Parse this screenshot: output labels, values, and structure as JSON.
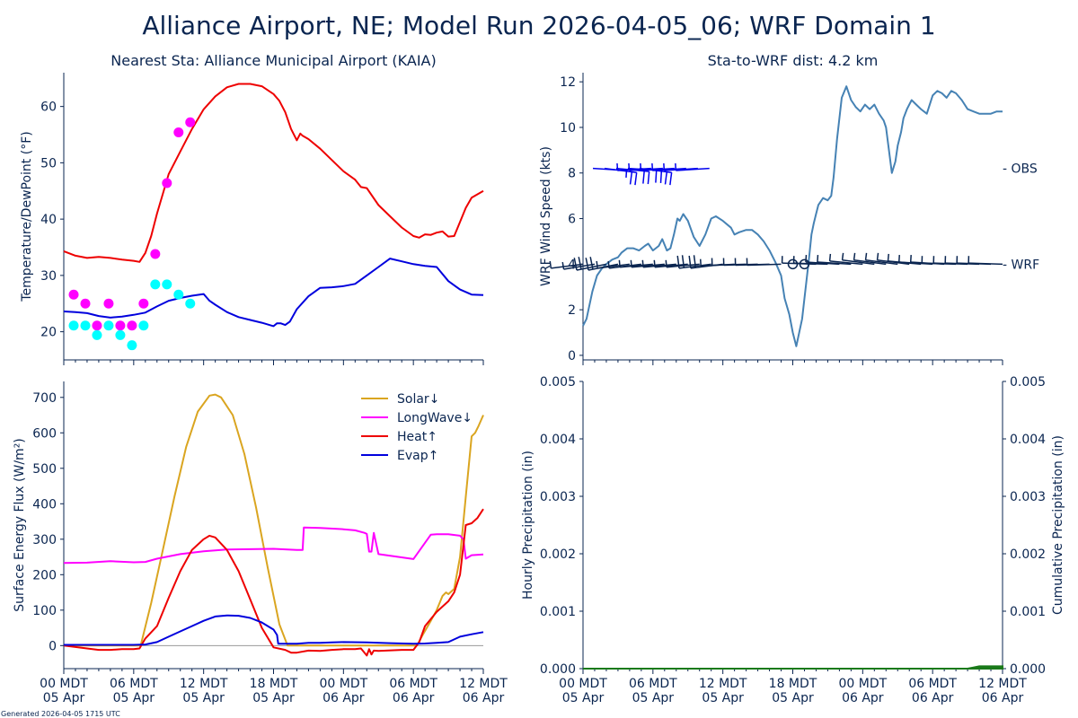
{
  "figure": {
    "title": "Alliance Airport, NE; Model Run 2026-04-05_06; WRF Domain 1",
    "footnote": "Generated 2026-04-05 1715 UTC"
  },
  "colors": {
    "axis": "#0a2550",
    "temp": "#ee0000",
    "dewpoint": "#0000dd",
    "obs_temp": "#ff00ff",
    "obs_dew": "#00ffff",
    "wind_speed": "#4682b4",
    "obs_barb": "#0000ee",
    "wrf_barb": "#0a2550",
    "solar": "#daa520",
    "longwave": "#ff00ff",
    "heat": "#ee0000",
    "evap": "#0000dd",
    "precip": "#1a7a1a",
    "zero_line": "#999999"
  },
  "x_axis": {
    "unit": "hours since 00 MDT 05 Apr",
    "range": [
      0,
      36
    ],
    "ticks": [
      {
        "hour": 0,
        "line1": "00 MDT",
        "line2": "05 Apr"
      },
      {
        "hour": 6,
        "line1": "06 MDT",
        "line2": "05 Apr"
      },
      {
        "hour": 12,
        "line1": "12 MDT",
        "line2": "05 Apr"
      },
      {
        "hour": 18,
        "line1": "18 MDT",
        "line2": "05 Apr"
      },
      {
        "hour": 24,
        "line1": "00 MDT",
        "line2": "06 Apr"
      },
      {
        "hour": 30,
        "line1": "06 MDT",
        "line2": "06 Apr"
      },
      {
        "hour": 36,
        "line1": "12 MDT",
        "line2": "06 Apr"
      }
    ]
  },
  "chart_data": [
    {
      "id": "temp",
      "type": "line",
      "title": "Nearest Sta: Alliance Municipal Airport (KAIA)",
      "xlabel": "",
      "ylabel": "Temperature/DewPoint (°F)",
      "ylim": [
        15,
        66
      ],
      "yticks": [
        20,
        30,
        40,
        50,
        60
      ],
      "series": [
        {
          "name": "WRF Temperature",
          "color_key": "temp",
          "x": [
            0,
            1,
            2,
            3,
            4,
            5,
            6,
            6.5,
            7,
            7.5,
            8,
            8.5,
            9,
            10,
            11,
            12,
            13,
            14,
            15,
            16,
            17,
            18,
            18.5,
            19,
            19.5,
            20,
            20.3,
            20.5,
            21,
            22,
            23,
            24,
            25,
            25.5,
            26,
            27,
            28,
            29,
            30,
            30.5,
            31,
            31.5,
            32,
            32.5,
            33,
            33.5,
            34,
            34.5,
            35,
            36
          ],
          "y": [
            34.3,
            33.5,
            33.1,
            33.3,
            33.1,
            32.8,
            32.6,
            32.4,
            34,
            37,
            41,
            44.5,
            48,
            52,
            56,
            59.5,
            61.8,
            63.4,
            64,
            64,
            63.6,
            62.2,
            61,
            59,
            56,
            54,
            55.2,
            54.8,
            54.2,
            52.5,
            50.5,
            48.5,
            47,
            45.7,
            45.5,
            42.5,
            40.5,
            38.5,
            37,
            36.7,
            37.3,
            37.2,
            37.6,
            37.8,
            36.9,
            37,
            39.5,
            42,
            43.8,
            45
          ]
        },
        {
          "name": "WRF DewPoint",
          "color_key": "dewpoint",
          "x": [
            0,
            1,
            2,
            3,
            4,
            5,
            6,
            7,
            8,
            9,
            10,
            11,
            12,
            12.5,
            13,
            14,
            15,
            16,
            17,
            18,
            18.3,
            18.6,
            19,
            19.4,
            20,
            21,
            22,
            23,
            24,
            25,
            26,
            27,
            28,
            29,
            30,
            31,
            32,
            33,
            34,
            35,
            36
          ],
          "y": [
            23.6,
            23.5,
            23.3,
            22.8,
            22.5,
            22.7,
            23,
            23.4,
            24.5,
            25.5,
            26,
            26.4,
            26.7,
            25.5,
            24.8,
            23.5,
            22.6,
            22.1,
            21.6,
            21,
            21.5,
            21.5,
            21.2,
            21.8,
            24,
            26.3,
            27.8,
            27.9,
            28.1,
            28.5,
            30,
            31.5,
            33,
            32.5,
            32,
            31.7,
            31.5,
            29,
            27.5,
            26.6,
            26.5
          ]
        },
        {
          "name": "Obs Temperature",
          "color_key": "obs_temp",
          "marker": "circle",
          "x": [
            0.85,
            1.85,
            2.85,
            3.85,
            4.85,
            5.85,
            6.85,
            7.85,
            8.85,
            9.85,
            10.85
          ],
          "y": [
            26.6,
            25,
            21.1,
            25,
            21.1,
            21.1,
            25,
            33.8,
            46.4,
            55.4,
            57.2
          ]
        },
        {
          "name": "Obs DewPoint",
          "color_key": "obs_dew",
          "marker": "circle",
          "x": [
            0.85,
            1.85,
            2.85,
            3.85,
            4.85,
            5.85,
            6.85,
            7.85,
            8.85,
            9.85,
            10.85
          ],
          "y": [
            21.1,
            21.1,
            19.4,
            21.1,
            19.4,
            17.6,
            21.1,
            28.4,
            28.4,
            26.6,
            25
          ]
        }
      ]
    },
    {
      "id": "wind",
      "type": "line",
      "title": "Sta-to-WRF dist: 4.2 km",
      "xlabel": "",
      "ylabel": "WRF Wind Speed (kts)",
      "ylim": [
        -0.2,
        12.4
      ],
      "yticks": [
        0,
        2,
        4,
        6,
        8,
        10,
        12
      ],
      "right_labels": [
        {
          "text": "OBS",
          "y": 8.2
        },
        {
          "text": "WRF",
          "y": 4.0
        }
      ],
      "series": [
        {
          "name": "WRF Wind Speed",
          "color_key": "wind_speed",
          "x": [
            0,
            0.3,
            0.8,
            1.2,
            1.6,
            2,
            2.5,
            3,
            3.3,
            3.8,
            4.3,
            4.8,
            5.3,
            5.6,
            6,
            6.5,
            6.8,
            7.2,
            7.5,
            7.8,
            8.1,
            8.3,
            8.6,
            9,
            9.5,
            10,
            10.5,
            11,
            11.4,
            12,
            12.7,
            13,
            13.4,
            14,
            14.5,
            15,
            15.5,
            16,
            16.5,
            17,
            17.3,
            17.7,
            18,
            18.3,
            18.8,
            19,
            19.2,
            19.4,
            19.6,
            19.8,
            20,
            20.2,
            20.6,
            21,
            21.3,
            21.5,
            21.8,
            22.2,
            22.6,
            23,
            23.4,
            23.8,
            24.2,
            24.6,
            25,
            25.4,
            25.8,
            26,
            26.2,
            26.5,
            26.8,
            27,
            27.3,
            27.5,
            27.8,
            28.2,
            28.6,
            29,
            29.5,
            30,
            30.4,
            30.8,
            31.2,
            31.6,
            32,
            32.5,
            33,
            33.5,
            34,
            34.5,
            35,
            35.5,
            36
          ],
          "y": [
            1.3,
            1.6,
            2.8,
            3.5,
            3.8,
            4.0,
            4.2,
            4.3,
            4.5,
            4.7,
            4.7,
            4.6,
            4.8,
            4.9,
            4.6,
            4.8,
            5.1,
            4.6,
            4.7,
            5.3,
            6.0,
            5.9,
            6.2,
            5.9,
            5.2,
            4.8,
            5.3,
            6.0,
            6.1,
            5.9,
            5.6,
            5.3,
            5.4,
            5.5,
            5.5,
            5.3,
            5.0,
            4.6,
            4.1,
            3.5,
            2.5,
            1.8,
            1.0,
            0.4,
            1.6,
            2.5,
            3.4,
            4.3,
            5.3,
            5.8,
            6.2,
            6.6,
            6.9,
            6.8,
            7.0,
            7.8,
            9.5,
            11.3,
            11.8,
            11.2,
            10.9,
            10.7,
            11.0,
            10.8,
            11.0,
            10.6,
            10.3,
            10.0,
            9.2,
            8.0,
            8.5,
            9.2,
            9.8,
            10.4,
            10.8,
            11.2,
            11.0,
            10.8,
            10.6,
            11.4,
            11.6,
            11.5,
            11.3,
            11.6,
            11.5,
            11.2,
            10.8,
            10.7,
            10.6,
            10.6,
            10.6,
            10.7,
            10.7
          ]
        },
        {
          "name": "OBS wind barbs",
          "color_key": "obs_barb",
          "type": "barbs",
          "row_y": 8.2,
          "x": [
            0.85,
            1.85,
            2.85,
            3.85,
            4.85,
            5.85,
            6.85,
            7.85,
            8.85,
            9.85,
            10.85
          ],
          "speed_kts": [
            5,
            10,
            10,
            10,
            10,
            5,
            5,
            5,
            5,
            5,
            5
          ],
          "direction_deg": [
            100,
            110,
            105,
            100,
            110,
            260,
            260,
            260,
            260,
            260,
            260
          ]
        },
        {
          "name": "WRF wind barbs",
          "color_key": "wrf_barb",
          "type": "barbs",
          "row_y": 4.0,
          "x": [
            0,
            1,
            2,
            3,
            4,
            5,
            6,
            7,
            8,
            9,
            10,
            11,
            12,
            13,
            14,
            15,
            16,
            17,
            18,
            19,
            20,
            21,
            22,
            23,
            24,
            25,
            26,
            27,
            28,
            29,
            30,
            31,
            32,
            33,
            34,
            35,
            36
          ],
          "speed_kts": [
            5,
            5,
            10,
            10,
            5,
            5,
            5,
            5,
            5,
            5,
            5,
            10,
            10,
            5,
            5,
            5,
            5,
            5,
            0,
            0,
            5,
            5,
            5,
            5,
            5,
            5,
            5,
            5,
            5,
            5,
            5,
            5,
            5,
            5,
            5,
            5,
            5
          ],
          "direction_deg": [
            250,
            245,
            240,
            240,
            250,
            250,
            255,
            255,
            255,
            255,
            255,
            250,
            250,
            260,
            265,
            265,
            265,
            265,
            0,
            0,
            275,
            275,
            280,
            280,
            285,
            290,
            290,
            290,
            290,
            285,
            280,
            280,
            275,
            275,
            275,
            275,
            275
          ]
        }
      ]
    },
    {
      "id": "flux",
      "type": "line",
      "title": "",
      "xlabel": "",
      "ylabel": "Surface Energy Flux (W/m²)",
      "ylim": [
        -65,
        745
      ],
      "yticks": [
        0,
        100,
        200,
        300,
        400,
        500,
        600,
        700
      ],
      "legend": {
        "placement": "top-right",
        "entries": [
          "Solar↓",
          "LongWave↓",
          "Heat↑",
          "Evap↑"
        ]
      },
      "series": [
        {
          "name": "Solar↓",
          "color_key": "solar",
          "x": [
            0,
            6,
            6.6,
            7.5,
            8.5,
            9.5,
            10.5,
            11.5,
            12.5,
            13,
            13.5,
            14.5,
            15.5,
            16.5,
            17.5,
            18.5,
            19.2,
            19.5,
            20,
            24,
            30,
            30.3,
            30.8,
            31.5,
            32,
            32.5,
            32.8,
            33,
            33.5,
            34,
            34.5,
            35,
            35.3,
            35.6,
            36
          ],
          "y": [
            0,
            0,
            0,
            120,
            270,
            420,
            560,
            660,
            705,
            708,
            700,
            650,
            540,
            390,
            220,
            60,
            0,
            0,
            0,
            0,
            0,
            0,
            30,
            70,
            100,
            140,
            150,
            145,
            160,
            250,
            420,
            590,
            600,
            620,
            650
          ]
        },
        {
          "name": "LongWave↓",
          "color_key": "longwave",
          "x": [
            0,
            2,
            4,
            6,
            7,
            8,
            10,
            12,
            14,
            16,
            18,
            20,
            20.5,
            20.6,
            22,
            24,
            25,
            25.8,
            26,
            26.2,
            26.4,
            26.6,
            27,
            30,
            31,
            31.5,
            32,
            33,
            34,
            34.3,
            34.5,
            35,
            36
          ],
          "y": [
            233,
            234,
            238,
            235,
            236,
            245,
            258,
            266,
            271,
            272,
            273,
            270,
            270,
            333,
            332,
            328,
            325,
            318,
            315,
            265,
            265,
            318,
            258,
            244,
            290,
            313,
            314,
            314,
            310,
            300,
            245,
            255,
            257
          ]
        },
        {
          "name": "Heat↑",
          "color_key": "heat",
          "x": [
            0,
            2,
            3,
            4,
            5,
            6,
            6.5,
            7,
            8,
            9,
            10,
            11,
            12,
            12.5,
            13,
            14,
            15,
            16,
            17,
            18,
            19,
            19.5,
            20,
            21,
            22,
            23,
            24,
            25,
            25.5,
            26,
            26.2,
            26.4,
            26.6,
            27,
            29,
            30,
            30.5,
            31,
            32,
            33,
            33.5,
            34,
            34.5,
            35,
            35.5,
            36
          ],
          "y": [
            0,
            -8,
            -12,
            -12,
            -10,
            -10,
            -8,
            20,
            55,
            135,
            210,
            270,
            300,
            310,
            305,
            270,
            210,
            130,
            50,
            -5,
            -12,
            -20,
            -20,
            -14,
            -15,
            -12,
            -10,
            -10,
            -8,
            -28,
            -10,
            -25,
            -14,
            -15,
            -12,
            -12,
            10,
            55,
            95,
            125,
            150,
            200,
            340,
            345,
            360,
            385
          ]
        },
        {
          "name": "Evap↑",
          "color_key": "evap",
          "x": [
            0,
            2,
            4,
            6,
            7,
            8,
            9,
            10,
            11,
            12,
            13,
            14,
            15,
            16,
            17,
            18,
            18.3,
            18.4,
            19,
            20,
            21,
            22,
            23,
            24,
            26,
            28,
            30,
            31,
            32,
            33,
            34,
            35,
            36
          ],
          "y": [
            2,
            2,
            2,
            2,
            3,
            10,
            25,
            40,
            55,
            70,
            82,
            85,
            84,
            78,
            65,
            45,
            30,
            5,
            5,
            5,
            8,
            8,
            9,
            10,
            9,
            7,
            5,
            6,
            8,
            10,
            25,
            32,
            38
          ]
        }
      ]
    },
    {
      "id": "precip",
      "type": "area",
      "title": "",
      "xlabel": "",
      "ylabel": "Hourly Precipitation (in)",
      "ylabel_right": "Cumulative Precipitation (in)",
      "ylim": [
        0,
        0.005
      ],
      "yticks": [
        0.0,
        0.001,
        0.002,
        0.003,
        0.004,
        0.005
      ],
      "ytick_labels": [
        "0.000",
        "0.001",
        "0.002",
        "0.003",
        "0.004",
        "0.005"
      ],
      "series": [
        {
          "name": "Cumulative Precipitation",
          "color_key": "precip",
          "x": [
            0,
            33,
            33.5,
            34,
            36
          ],
          "y": [
            0,
            0,
            2e-05,
            4e-05,
            4e-05
          ]
        }
      ]
    }
  ]
}
